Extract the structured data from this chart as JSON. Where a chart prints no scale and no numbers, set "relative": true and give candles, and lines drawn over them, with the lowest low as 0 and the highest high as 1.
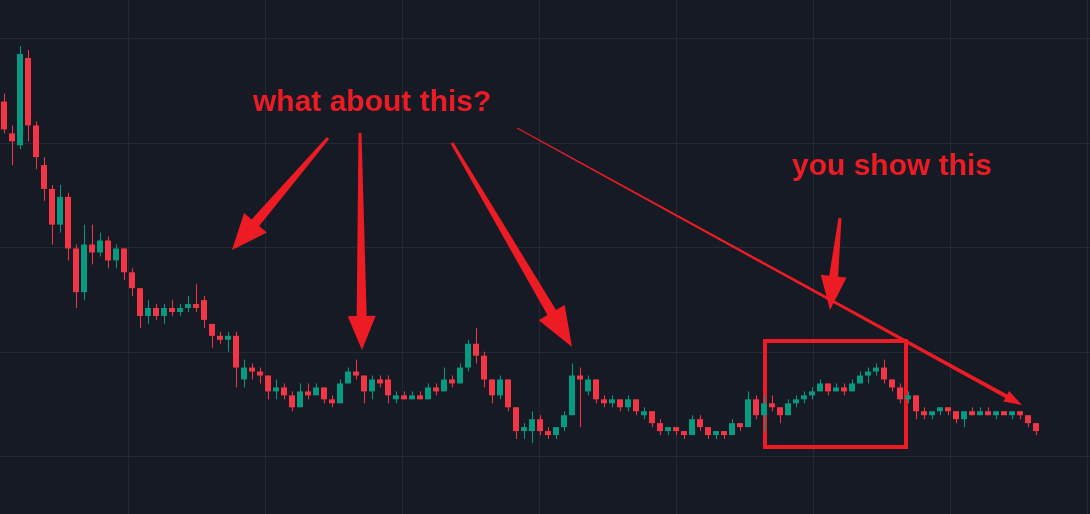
{
  "chart_data": {
    "type": "candlestick",
    "relative": true,
    "tick_labels": false,
    "grid": true,
    "annotations": [
      "what about this?",
      "you show this"
    ],
    "categories": [
      null,
      null,
      null,
      null,
      null,
      null,
      null,
      null,
      null,
      null,
      null,
      null,
      null,
      null,
      null,
      null,
      null,
      null,
      null,
      null,
      null,
      null,
      null,
      null,
      null,
      null,
      null,
      null,
      null,
      null,
      null,
      null,
      null,
      null,
      null,
      null,
      null,
      null,
      null,
      null,
      null,
      null,
      null,
      null,
      null,
      null,
      null,
      null,
      null,
      null,
      null,
      null,
      null,
      null,
      null,
      null,
      null,
      null,
      null,
      null,
      null,
      null,
      null,
      null,
      null,
      null,
      null,
      null,
      null,
      null,
      null,
      null,
      null,
      null,
      null,
      null,
      null,
      null,
      null,
      null,
      null,
      null,
      null,
      null,
      null,
      null,
      null,
      null,
      null,
      null,
      null,
      null,
      null,
      null,
      null,
      null,
      null,
      null,
      null,
      null,
      null,
      null,
      null,
      null,
      null,
      null,
      null,
      null,
      null,
      null,
      null,
      null,
      null,
      null,
      null,
      null,
      null,
      null,
      null,
      null,
      null,
      null,
      null,
      null,
      null,
      null,
      null,
      null,
      null,
      null
    ],
    "ohlc": [
      [
        0.86,
        0.88,
        0.78,
        0.79
      ],
      [
        0.78,
        0.8,
        0.7,
        0.76
      ],
      [
        0.75,
        1.0,
        0.74,
        0.98
      ],
      [
        0.97,
        0.99,
        0.76,
        0.8
      ],
      [
        0.8,
        0.81,
        0.69,
        0.72
      ],
      [
        0.7,
        0.72,
        0.61,
        0.64
      ],
      [
        0.64,
        0.65,
        0.5,
        0.55
      ],
      [
        0.55,
        0.65,
        0.53,
        0.62
      ],
      [
        0.62,
        0.63,
        0.46,
        0.49
      ],
      [
        0.49,
        0.5,
        0.34,
        0.38
      ],
      [
        0.38,
        0.55,
        0.36,
        0.5
      ],
      [
        0.5,
        0.55,
        0.45,
        0.48
      ],
      [
        0.48,
        0.53,
        0.47,
        0.51
      ],
      [
        0.51,
        0.52,
        0.44,
        0.46
      ],
      [
        0.46,
        0.5,
        0.44,
        0.49
      ],
      [
        0.49,
        0.49,
        0.41,
        0.43
      ],
      [
        0.43,
        0.44,
        0.37,
        0.39
      ],
      [
        0.39,
        0.39,
        0.29,
        0.32
      ],
      [
        0.32,
        0.36,
        0.3,
        0.34
      ],
      [
        0.34,
        0.35,
        0.31,
        0.32
      ],
      [
        0.32,
        0.35,
        0.3,
        0.34
      ],
      [
        0.34,
        0.36,
        0.32,
        0.33
      ],
      [
        0.33,
        0.35,
        0.32,
        0.34
      ],
      [
        0.34,
        0.37,
        0.33,
        0.35
      ],
      [
        0.35,
        0.4,
        0.33,
        0.34
      ],
      [
        0.36,
        0.37,
        0.29,
        0.31
      ],
      [
        0.3,
        0.3,
        0.24,
        0.27
      ],
      [
        0.27,
        0.28,
        0.25,
        0.26
      ],
      [
        0.26,
        0.28,
        0.23,
        0.27
      ],
      [
        0.27,
        0.28,
        0.14,
        0.19
      ],
      [
        0.16,
        0.21,
        0.14,
        0.19
      ],
      [
        0.19,
        0.2,
        0.16,
        0.18
      ],
      [
        0.18,
        0.19,
        0.15,
        0.17
      ],
      [
        0.17,
        0.17,
        0.11,
        0.13
      ],
      [
        0.13,
        0.16,
        0.11,
        0.14
      ],
      [
        0.14,
        0.15,
        0.11,
        0.12
      ],
      [
        0.12,
        0.13,
        0.08,
        0.09
      ],
      [
        0.09,
        0.15,
        0.09,
        0.13
      ],
      [
        0.13,
        0.15,
        0.11,
        0.12
      ],
      [
        0.12,
        0.15,
        0.12,
        0.14
      ],
      [
        0.14,
        0.14,
        0.1,
        0.11
      ],
      [
        0.11,
        0.12,
        0.09,
        0.1
      ],
      [
        0.1,
        0.16,
        0.1,
        0.15
      ],
      [
        0.15,
        0.19,
        0.15,
        0.18
      ],
      [
        0.18,
        0.21,
        0.16,
        0.17
      ],
      [
        0.17,
        0.17,
        0.1,
        0.13
      ],
      [
        0.13,
        0.17,
        0.11,
        0.16
      ],
      [
        0.16,
        0.17,
        0.14,
        0.15
      ],
      [
        0.16,
        0.17,
        0.1,
        0.12
      ],
      [
        0.11,
        0.13,
        0.1,
        0.12
      ],
      [
        0.12,
        0.13,
        0.11,
        0.11
      ],
      [
        0.11,
        0.13,
        0.11,
        0.12
      ],
      [
        0.12,
        0.13,
        0.11,
        0.11
      ],
      [
        0.11,
        0.15,
        0.11,
        0.14
      ],
      [
        0.14,
        0.15,
        0.12,
        0.13
      ],
      [
        0.13,
        0.19,
        0.13,
        0.16
      ],
      [
        0.16,
        0.17,
        0.14,
        0.15
      ],
      [
        0.15,
        0.2,
        0.15,
        0.19
      ],
      [
        0.19,
        0.26,
        0.18,
        0.25
      ],
      [
        0.25,
        0.29,
        0.2,
        0.22
      ],
      [
        0.22,
        0.23,
        0.14,
        0.16
      ],
      [
        0.16,
        0.16,
        0.1,
        0.12
      ],
      [
        0.12,
        0.17,
        0.11,
        0.16
      ],
      [
        0.16,
        0.16,
        0.08,
        0.09
      ],
      [
        0.09,
        0.09,
        0.01,
        0.03
      ],
      [
        0.03,
        0.05,
        0.01,
        0.04
      ],
      [
        0.03,
        0.08,
        0.0,
        0.06
      ],
      [
        0.06,
        0.07,
        0.02,
        0.03
      ],
      [
        0.03,
        0.04,
        0.01,
        0.02
      ],
      [
        0.02,
        0.04,
        0.01,
        0.04
      ],
      [
        0.04,
        0.08,
        0.03,
        0.07
      ],
      [
        0.07,
        0.2,
        0.07,
        0.17
      ],
      [
        0.17,
        0.19,
        0.04,
        0.16
      ],
      [
        0.13,
        0.17,
        0.12,
        0.16
      ],
      [
        0.16,
        0.16,
        0.1,
        0.11
      ],
      [
        0.11,
        0.12,
        0.09,
        0.1
      ],
      [
        0.1,
        0.12,
        0.09,
        0.11
      ],
      [
        0.11,
        0.11,
        0.08,
        0.09
      ],
      [
        0.09,
        0.12,
        0.08,
        0.11
      ],
      [
        0.11,
        0.11,
        0.07,
        0.08
      ],
      [
        0.07,
        0.09,
        0.06,
        0.08
      ],
      [
        0.08,
        0.08,
        0.04,
        0.05
      ],
      [
        0.05,
        0.06,
        0.02,
        0.03
      ],
      [
        0.03,
        0.04,
        0.02,
        0.04
      ],
      [
        0.04,
        0.04,
        0.02,
        0.03
      ],
      [
        0.03,
        0.03,
        0.01,
        0.02
      ],
      [
        0.02,
        0.07,
        0.02,
        0.06
      ],
      [
        0.06,
        0.07,
        0.03,
        0.04
      ],
      [
        0.04,
        0.04,
        0.01,
        0.02
      ],
      [
        0.02,
        0.03,
        0.01,
        0.03
      ],
      [
        0.03,
        0.03,
        0.01,
        0.02
      ],
      [
        0.02,
        0.06,
        0.02,
        0.05
      ],
      [
        0.05,
        0.05,
        0.03,
        0.04
      ],
      [
        0.04,
        0.13,
        0.04,
        0.11
      ],
      [
        0.11,
        0.12,
        0.06,
        0.07
      ],
      [
        0.07,
        0.12,
        0.03,
        0.1
      ],
      [
        0.1,
        0.12,
        0.08,
        0.09
      ],
      [
        0.09,
        0.09,
        0.05,
        0.07
      ],
      [
        0.07,
        0.11,
        0.07,
        0.1
      ],
      [
        0.1,
        0.12,
        0.09,
        0.11
      ],
      [
        0.11,
        0.13,
        0.1,
        0.12
      ],
      [
        0.12,
        0.14,
        0.11,
        0.13
      ],
      [
        0.13,
        0.16,
        0.13,
        0.15
      ],
      [
        0.15,
        0.15,
        0.12,
        0.13
      ],
      [
        0.13,
        0.15,
        0.13,
        0.14
      ],
      [
        0.14,
        0.15,
        0.12,
        0.13
      ],
      [
        0.13,
        0.16,
        0.13,
        0.15
      ],
      [
        0.15,
        0.18,
        0.15,
        0.17
      ],
      [
        0.17,
        0.19,
        0.15,
        0.18
      ],
      [
        0.18,
        0.2,
        0.17,
        0.19
      ],
      [
        0.19,
        0.21,
        0.15,
        0.16
      ],
      [
        0.16,
        0.16,
        0.13,
        0.14
      ],
      [
        0.14,
        0.15,
        0.1,
        0.11
      ],
      [
        0.11,
        0.13,
        0.1,
        0.12
      ],
      [
        0.12,
        0.12,
        0.06,
        0.08
      ],
      [
        0.08,
        0.09,
        0.06,
        0.07
      ],
      [
        0.07,
        0.08,
        0.06,
        0.08
      ],
      [
        0.08,
        0.09,
        0.07,
        0.09
      ],
      [
        0.09,
        0.09,
        0.07,
        0.08
      ],
      [
        0.08,
        0.08,
        0.05,
        0.06
      ],
      [
        0.06,
        0.08,
        0.04,
        0.08
      ],
      [
        0.08,
        0.09,
        0.07,
        0.07
      ],
      [
        0.07,
        0.09,
        0.07,
        0.08
      ],
      [
        0.08,
        0.09,
        0.07,
        0.07
      ],
      [
        0.07,
        0.08,
        0.06,
        0.08
      ],
      [
        0.08,
        0.08,
        0.07,
        0.07
      ],
      [
        0.07,
        0.08,
        0.06,
        0.08
      ],
      [
        0.08,
        0.08,
        0.06,
        0.07
      ],
      [
        0.07,
        0.07,
        0.04,
        0.05
      ],
      [
        0.05,
        0.05,
        0.02,
        0.03
      ]
    ],
    "colors": [
      "#f23645",
      "#f23645",
      "#089981",
      "#f23645",
      "#f23645",
      "#f23645",
      "#f23645",
      "#089981",
      "#f23645",
      "#f23645",
      "#089981",
      "#f23645",
      "#089981",
      "#f23645",
      "#089981",
      "#f23645",
      "#f23645",
      "#f23645",
      "#089981",
      "#f23645",
      "#089981",
      "#f23645",
      "#089981",
      "#089981",
      "#f23645",
      "#f23645",
      "#f23645",
      "#f23645",
      "#089981",
      "#f23645",
      "#089981",
      "#f23645",
      "#f23645",
      "#f23645",
      "#089981",
      "#f23645",
      "#f23645",
      "#089981",
      "#f23645",
      "#089981",
      "#f23645",
      "#f23645",
      "#089981",
      "#089981",
      "#f23645",
      "#f23645",
      "#089981",
      "#f23645",
      "#f23645",
      "#089981",
      "#f23645",
      "#089981",
      "#f23645",
      "#089981",
      "#f23645",
      "#089981",
      "#f23645",
      "#089981",
      "#089981",
      "#f23645",
      "#f23645",
      "#f23645",
      "#089981",
      "#f23645",
      "#f23645",
      "#089981",
      "#089981",
      "#f23645",
      "#f23645",
      "#089981",
      "#089981",
      "#089981",
      "#f23645",
      "#089981",
      "#f23645",
      "#f23645",
      "#089981",
      "#f23645",
      "#089981",
      "#f23645",
      "#089981",
      "#f23645",
      "#f23645",
      "#089981",
      "#f23645",
      "#f23645",
      "#089981",
      "#f23645",
      "#f23645",
      "#089981",
      "#f23645",
      "#089981",
      "#f23645",
      "#089981",
      "#f23645",
      "#089981",
      "#f23645",
      "#f23645",
      "#089981",
      "#089981",
      "#089981",
      "#089981",
      "#089981",
      "#f23645",
      "#089981",
      "#f23645",
      "#089981",
      "#089981",
      "#089981",
      "#089981",
      "#f23645",
      "#f23645",
      "#f23645",
      "#089981",
      "#f23645",
      "#f23645",
      "#089981",
      "#089981",
      "#f23645",
      "#f23645",
      "#089981",
      "#f23645",
      "#089981",
      "#f23645",
      "#089981",
      "#f23645",
      "#089981",
      "#f23645",
      "#f23645",
      "#f23645"
    ]
  }
}
